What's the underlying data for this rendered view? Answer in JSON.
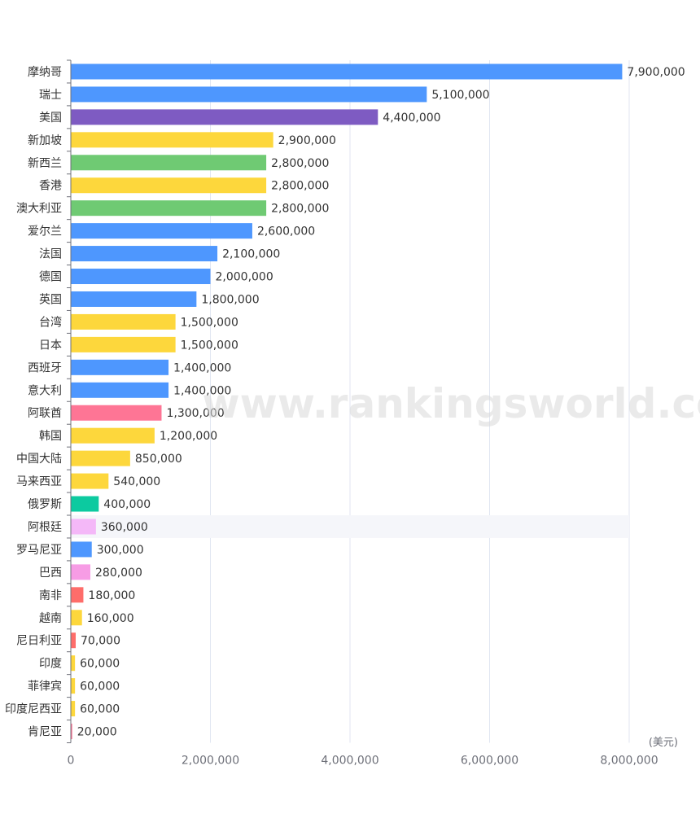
{
  "chart_data": {
    "type": "bar",
    "orientation": "horizontal",
    "title": "",
    "x_unit_label": "(美元)",
    "xlim": [
      0,
      8000000
    ],
    "x_ticks": [
      "0",
      "2,000,000",
      "4,000,000",
      "6,000,000",
      "8,000,000"
    ],
    "grid": true,
    "highlighted_category": "阿根廷",
    "watermark": "www.rankingsworld.com",
    "categories": [
      "摩纳哥",
      "瑞士",
      "美国",
      "新加坡",
      "新西兰",
      "香港",
      "澳大利亚",
      "爱尔兰",
      "法国",
      "德国",
      "英国",
      "台湾",
      "日本",
      "西班牙",
      "意大利",
      "阿联酋",
      "韩国",
      "中国大陆",
      "马来西亚",
      "俄罗斯",
      "阿根廷",
      "罗马尼亚",
      "巴西",
      "南非",
      "越南",
      "尼日利亚",
      "印度",
      "菲律宾",
      "印度尼西亚",
      "肯尼亚"
    ],
    "values": [
      7900000,
      5100000,
      4400000,
      2900000,
      2800000,
      2800000,
      2800000,
      2600000,
      2100000,
      2000000,
      1800000,
      1500000,
      1500000,
      1400000,
      1400000,
      1300000,
      1200000,
      850000,
      540000,
      400000,
      360000,
      300000,
      280000,
      180000,
      160000,
      70000,
      60000,
      60000,
      60000,
      20000
    ],
    "value_labels": [
      "7,900,000",
      "5,100,000",
      "4,400,000",
      "2,900,000",
      "2,800,000",
      "2,800,000",
      "2,800,000",
      "2,600,000",
      "2,100,000",
      "2,000,000",
      "1,800,000",
      "1,500,000",
      "1,500,000",
      "1,400,000",
      "1,400,000",
      "1,300,000",
      "1,200,000",
      "850,000",
      "540,000",
      "400,000",
      "360,000",
      "300,000",
      "280,000",
      "180,000",
      "160,000",
      "70,000",
      "60,000",
      "60,000",
      "60,000",
      "20,000"
    ],
    "colors": [
      "#4e97fe",
      "#4e97fe",
      "#7e5bc2",
      "#fdd73c",
      "#6fca73",
      "#fdd73c",
      "#6fca73",
      "#4e97fe",
      "#4e97fe",
      "#4e97fe",
      "#4e97fe",
      "#fdd73c",
      "#fdd73c",
      "#4e97fe",
      "#4e97fe",
      "#fe7595",
      "#fdd73c",
      "#fdd73c",
      "#fdd73c",
      "#0ccaa0",
      "#f4b8f8",
      "#4e97fe",
      "#f79ce5",
      "#fe6d6a",
      "#fdd73c",
      "#fe6d6a",
      "#fdd73c",
      "#fdd73c",
      "#fdd73c",
      "#fe7595"
    ]
  }
}
